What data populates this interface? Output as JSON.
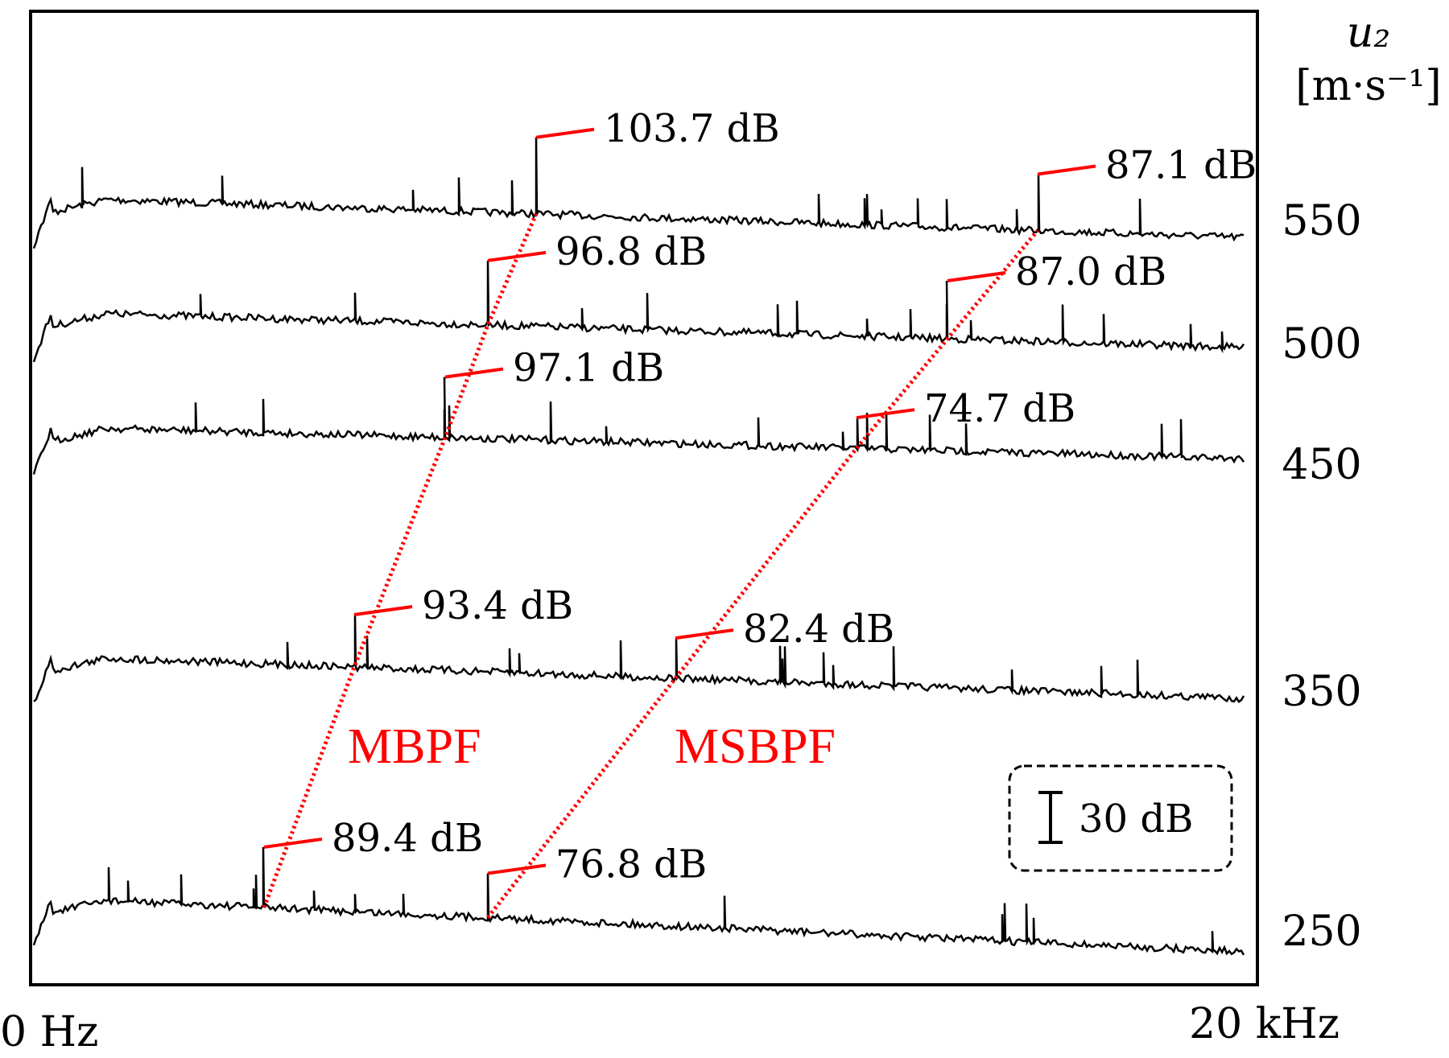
{
  "chart_data": {
    "type": "line",
    "title": "",
    "xlabel": "",
    "ylabel": "u₂ [m·s⁻¹]",
    "x_range": {
      "min_label": "0 Hz",
      "max_label": "20 kHz",
      "min_khz": 0,
      "max_khz": 20
    },
    "ylabel_lines": [
      "u₂",
      "[m·s⁻¹]"
    ],
    "scale_bar": "30 dB",
    "grid": false,
    "colors": {
      "trace": "#000000",
      "annotation": "#ff0000"
    },
    "trend_lines": [
      {
        "name": "MBPF",
        "points": [
          "250",
          "350",
          "450",
          "500",
          "550"
        ]
      },
      {
        "name": "MSBPF",
        "points": [
          "250",
          "350",
          "450",
          "500",
          "550"
        ]
      }
    ],
    "series": [
      {
        "name": "550",
        "peaks": [
          {
            "freq_khz": 8.3,
            "level_db": "103.7 dB",
            "group": "MBPF"
          },
          {
            "freq_khz": 16.6,
            "level_db": "87.1 dB",
            "group": "MSBPF"
          }
        ]
      },
      {
        "name": "500",
        "peaks": [
          {
            "freq_khz": 7.5,
            "level_db": "96.8 dB",
            "group": "MBPF"
          },
          {
            "freq_khz": 15.1,
            "level_db": "87.0 dB",
            "group": "MSBPF"
          }
        ]
      },
      {
        "name": "450",
        "peaks": [
          {
            "freq_khz": 6.8,
            "level_db": "97.1 dB",
            "group": "MBPF"
          },
          {
            "freq_khz": 13.6,
            "level_db": "74.7 dB",
            "group": "MSBPF"
          }
        ]
      },
      {
        "name": "350",
        "peaks": [
          {
            "freq_khz": 5.3,
            "level_db": "93.4 dB",
            "group": "MBPF"
          },
          {
            "freq_khz": 10.6,
            "level_db": "82.4 dB",
            "group": "MSBPF"
          }
        ]
      },
      {
        "name": "250",
        "peaks": [
          {
            "freq_khz": 3.8,
            "level_db": "89.4 dB",
            "group": "MBPF"
          },
          {
            "freq_khz": 7.5,
            "level_db": "76.8 dB",
            "group": "MSBPF"
          }
        ]
      }
    ]
  }
}
